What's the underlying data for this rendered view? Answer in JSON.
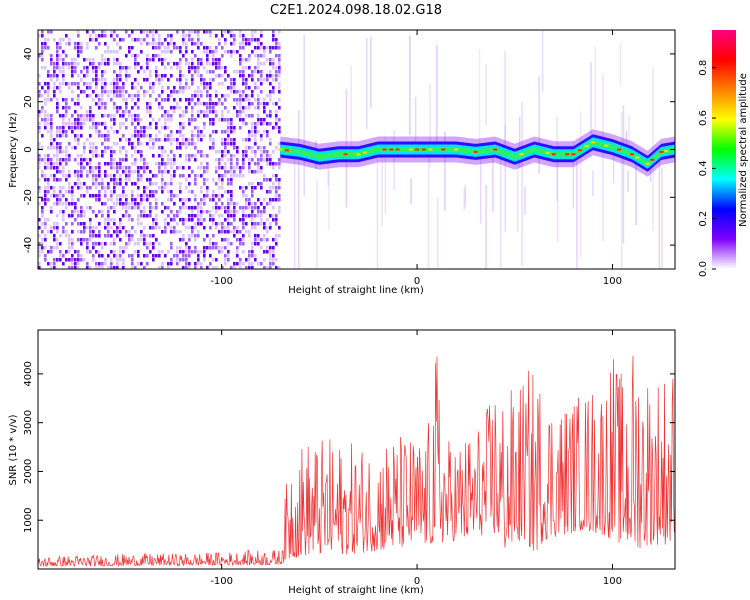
{
  "title": "C2E1.2024.098.18.02.G18",
  "chart_data": [
    {
      "type": "heatmap",
      "name": "spectrogram",
      "xlabel": "Height of straight line (km)",
      "ylabel": "Frequency (Hz)",
      "xlim": [
        -194,
        132
      ],
      "ylim": [
        -50,
        50
      ],
      "xticks": [
        -100,
        0,
        100
      ],
      "yticks": [
        -40,
        -20,
        0,
        20,
        40
      ],
      "signal_onset_km": -70,
      "signal_trace_hz": [
        {
          "x": -70,
          "y": 0
        },
        {
          "x": -60,
          "y": -1
        },
        {
          "x": -50,
          "y": -3
        },
        {
          "x": -40,
          "y": -2
        },
        {
          "x": -30,
          "y": -2
        },
        {
          "x": -20,
          "y": 0
        },
        {
          "x": -10,
          "y": 0
        },
        {
          "x": 0,
          "y": 0
        },
        {
          "x": 10,
          "y": 0
        },
        {
          "x": 20,
          "y": 0
        },
        {
          "x": 30,
          "y": -1
        },
        {
          "x": 40,
          "y": 0
        },
        {
          "x": 50,
          "y": -3
        },
        {
          "x": 60,
          "y": 0
        },
        {
          "x": 70,
          "y": -2
        },
        {
          "x": 80,
          "y": -2
        },
        {
          "x": 90,
          "y": 3
        },
        {
          "x": 100,
          "y": 1
        },
        {
          "x": 110,
          "y": -2
        },
        {
          "x": 118,
          "y": -6
        },
        {
          "x": 125,
          "y": -1
        },
        {
          "x": 132,
          "y": 0
        }
      ],
      "colorbar": {
        "label": "Normalized spectral amplitude",
        "range": [
          0,
          0.95
        ],
        "ticks": [
          "0.0",
          "0.2",
          "0.4",
          "0.6",
          "0.8"
        ],
        "colors": [
          "#ffffff",
          "#7f00ff",
          "#0000ff",
          "#00ffff",
          "#00ff00",
          "#ffff00",
          "#ff8000",
          "#ff0000",
          "#ff0080"
        ]
      }
    },
    {
      "type": "line",
      "name": "snr",
      "xlabel": "Height of straight line (km)",
      "ylabel": "SNR (10 * v/v)",
      "xlim": [
        -194,
        132
      ],
      "ylim": [
        0,
        4900
      ],
      "xticks": [
        -100,
        0,
        100
      ],
      "yticks": [
        1000,
        2000,
        3000,
        4000
      ],
      "color": "#ee3333",
      "series": [
        {
          "x": [
            -194,
            -180,
            -160,
            -140,
            -120,
            -100,
            -80,
            -70,
            -65,
            -55,
            -45,
            -35,
            -25,
            -15,
            -5,
            5,
            10,
            15,
            25,
            35,
            40,
            45,
            55,
            60,
            65,
            75,
            85,
            95,
            100,
            105,
            112,
            120,
            132
          ],
          "lower": [
            50,
            60,
            60,
            70,
            70,
            80,
            80,
            90,
            200,
            300,
            300,
            300,
            350,
            400,
            450,
            500,
            500,
            550,
            600,
            700,
            700,
            400,
            600,
            300,
            600,
            700,
            800,
            700,
            600,
            500,
            400,
            500,
            500
          ],
          "upper": [
            250,
            280,
            300,
            320,
            320,
            350,
            400,
            400,
            2600,
            2700,
            2700,
            2600,
            2600,
            2800,
            2800,
            2700,
            4650,
            2700,
            2800,
            3200,
            4000,
            3600,
            4000,
            4300,
            3800,
            3500,
            3700,
            4000,
            4550,
            4000,
            4850,
            4100,
            4300
          ]
        }
      ]
    }
  ]
}
